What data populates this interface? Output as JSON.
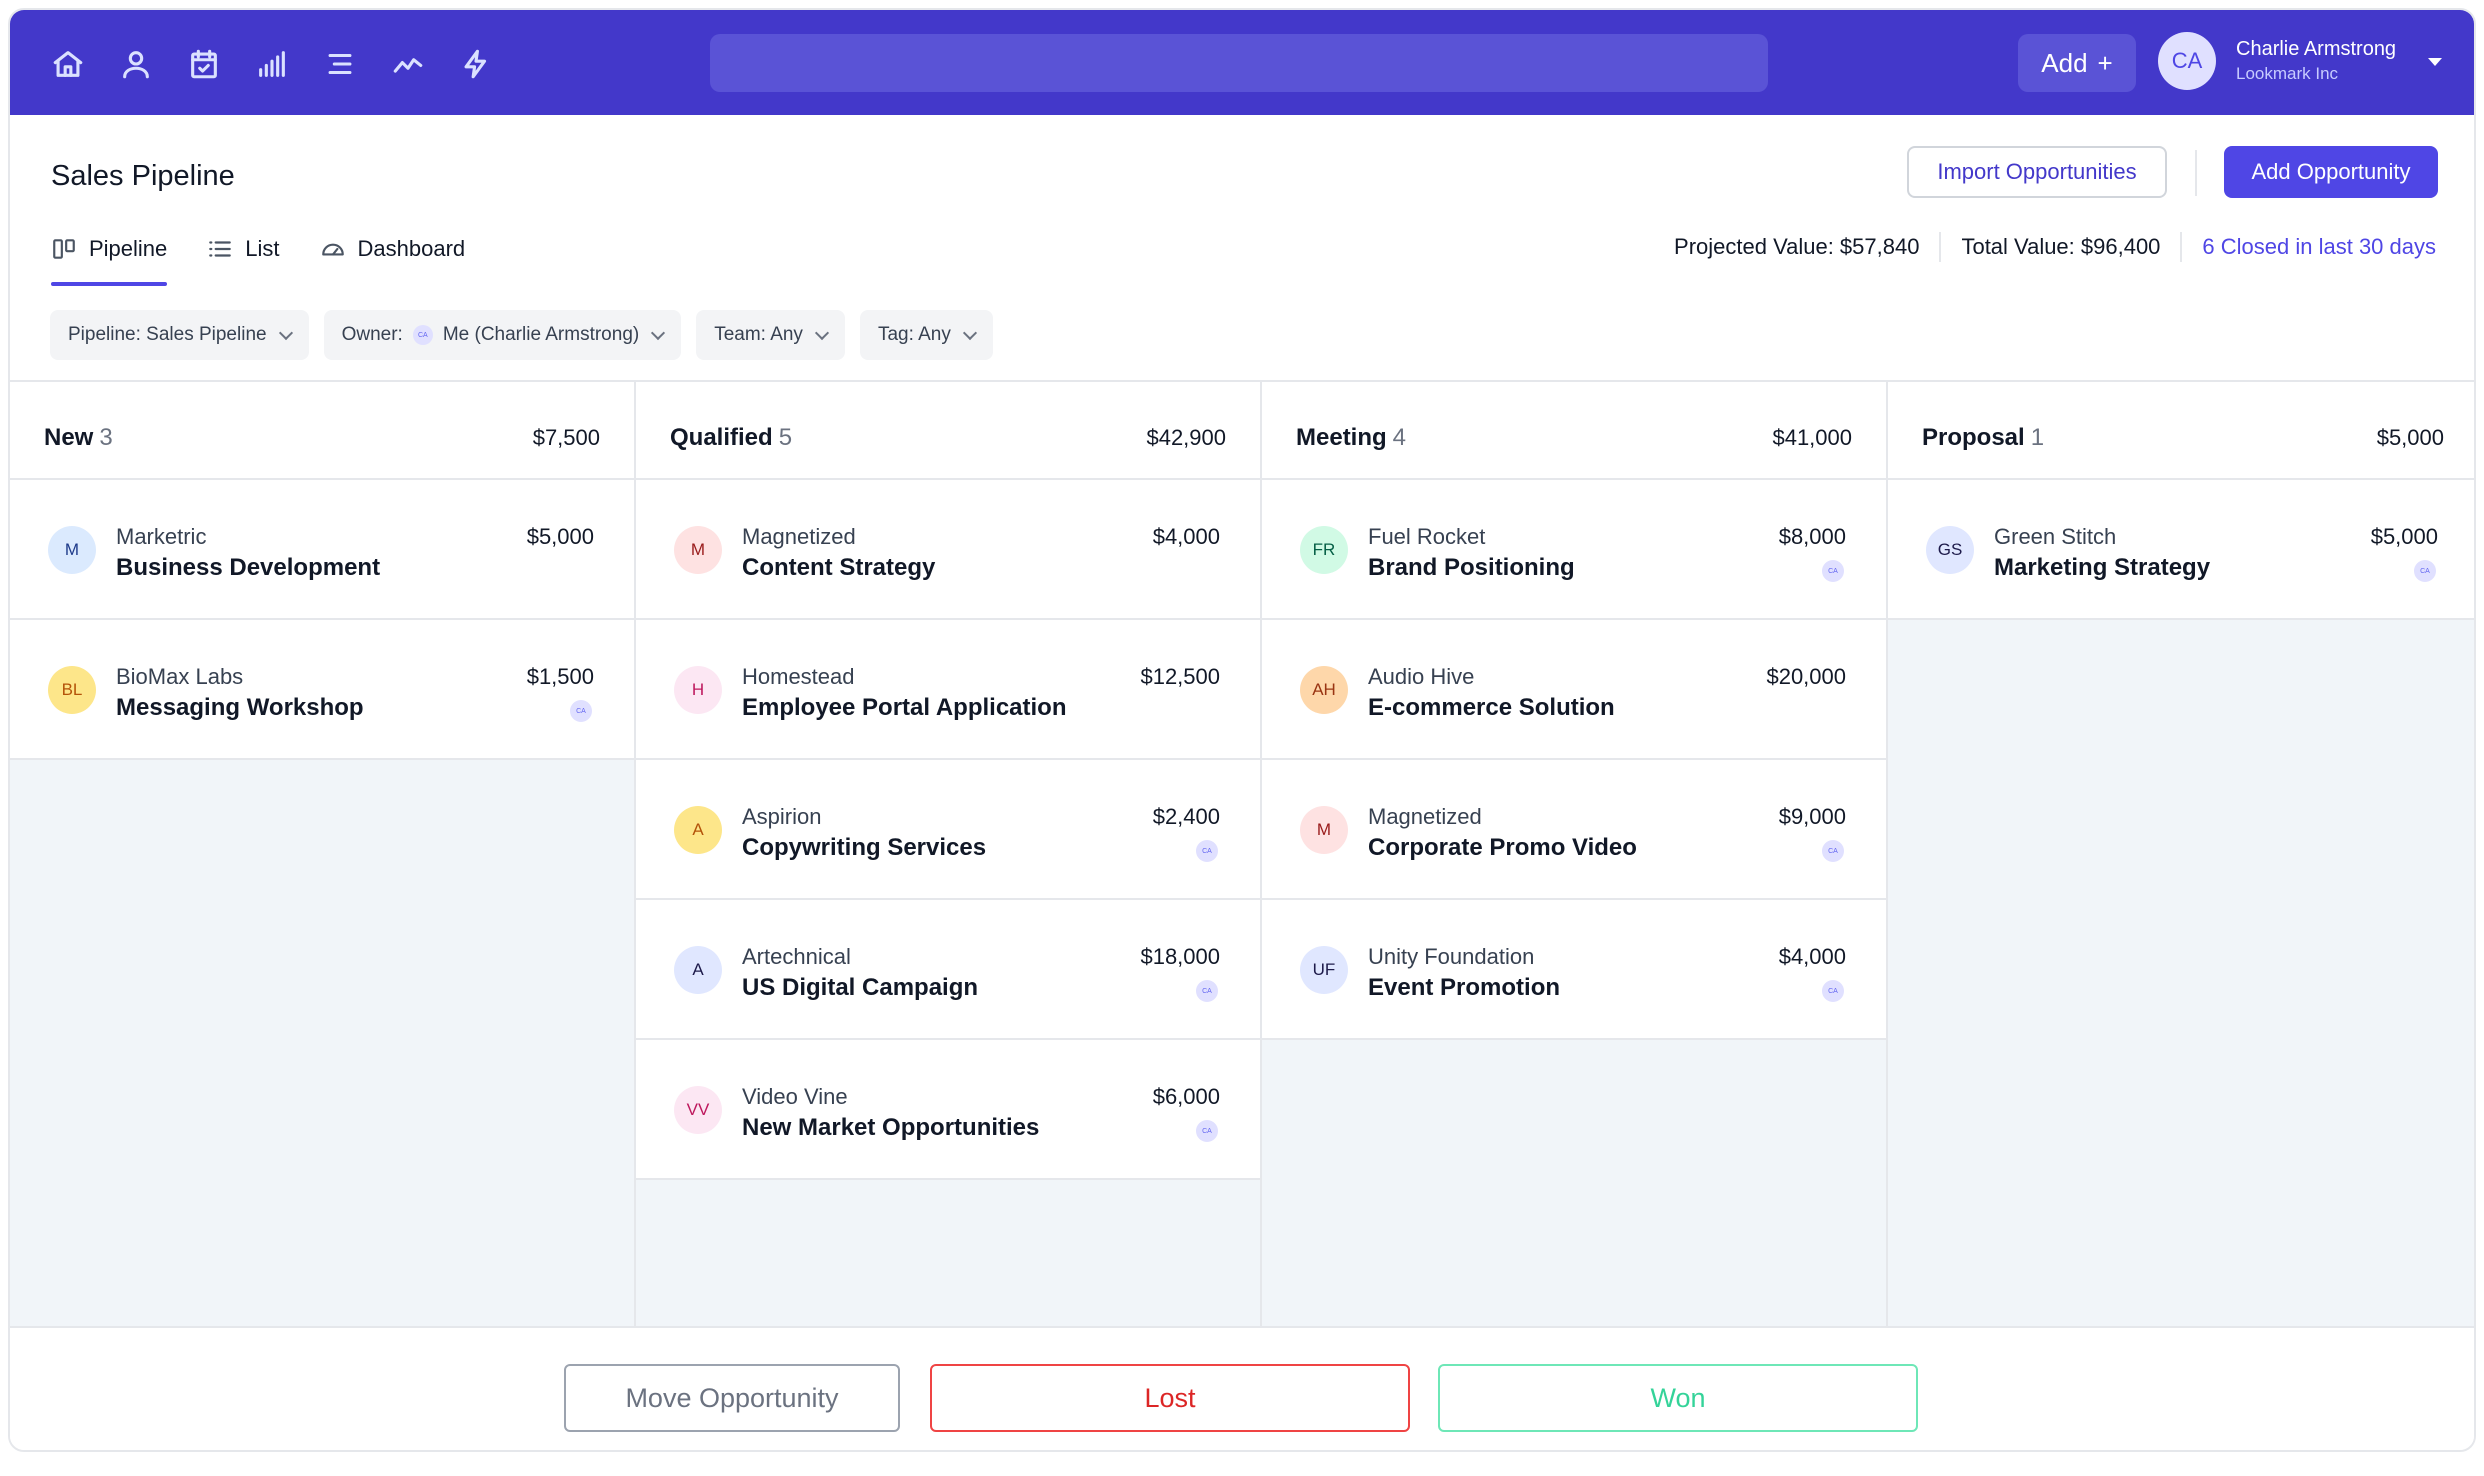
{
  "topbar": {
    "nav_icons": [
      "home-icon",
      "user-icon",
      "calendar-icon",
      "signal-bars-icon",
      "menu-lines-icon",
      "trend-icon",
      "lightning-icon"
    ],
    "search_placeholder": "",
    "add_label": "Add",
    "add_icon": "+",
    "user": {
      "initials": "CA",
      "name": "Charlie Armstrong",
      "org": "Lookmark Inc"
    }
  },
  "header": {
    "title": "Sales Pipeline",
    "import_label": "Import Opportunities",
    "add_opportunity_label": "Add Opportunity"
  },
  "tabs": [
    {
      "label": "Pipeline",
      "icon": "kanban-icon",
      "active": true
    },
    {
      "label": "List",
      "icon": "list-icon",
      "active": false
    },
    {
      "label": "Dashboard",
      "icon": "gauge-icon",
      "active": false
    }
  ],
  "stats": {
    "projected": "Projected Value: $57,840",
    "total": "Total Value: $96,400",
    "closed": "6 Closed in last 30 days"
  },
  "filters": {
    "pipeline": "Pipeline: Sales Pipeline",
    "owner_prefix": "Owner:",
    "owner_initials": "CA",
    "owner_value": "Me (Charlie Armstrong)",
    "team": "Team: Any",
    "tag": "Tag: Any"
  },
  "columns": [
    {
      "name": "New",
      "count": "3",
      "total": "$7,500",
      "cards": [
        {
          "initials": "M",
          "bg": "#dbeafe",
          "fg": "#1e3a8a",
          "company": "Marketric",
          "name": "Business Development",
          "amount": "$5,000",
          "owner": ""
        },
        {
          "initials": "BL",
          "bg": "#fde68a",
          "fg": "#b45309",
          "company": "BioMax Labs",
          "name": "Messaging Workshop",
          "amount": "$1,500",
          "owner": "CA"
        }
      ]
    },
    {
      "name": "Qualified",
      "count": "5",
      "total": "$42,900",
      "cards": [
        {
          "initials": "M",
          "bg": "#fee2e2",
          "fg": "#991b1b",
          "company": "Magnetized",
          "name": "Content Strategy",
          "amount": "$4,000",
          "owner": ""
        },
        {
          "initials": "H",
          "bg": "#fce7f3",
          "fg": "#be185d",
          "company": "Homestead",
          "name": "Employee Portal Application",
          "amount": "$12,500",
          "owner": ""
        },
        {
          "initials": "A",
          "bg": "#fde68a",
          "fg": "#b45309",
          "company": "Aspirion",
          "name": "Copywriting Services",
          "amount": "$2,400",
          "owner": "CA"
        },
        {
          "initials": "A",
          "bg": "#e0e7ff",
          "fg": "#1e1b4b",
          "company": "Artechnical",
          "name": "US Digital Campaign",
          "amount": "$18,000",
          "owner": "CA"
        },
        {
          "initials": "VV",
          "bg": "#fce7f3",
          "fg": "#be185d",
          "company": "Video Vine",
          "name": "New Market Opportunities",
          "amount": "$6,000",
          "owner": "CA"
        }
      ]
    },
    {
      "name": "Meeting",
      "count": "4",
      "total": "$41,000",
      "cards": [
        {
          "initials": "FR",
          "bg": "#d1fae5",
          "fg": "#065f46",
          "company": "Fuel Rocket",
          "name": "Brand Positioning",
          "amount": "$8,000",
          "owner": "CA"
        },
        {
          "initials": "AH",
          "bg": "#fed7aa",
          "fg": "#9a3412",
          "company": "Audio Hive",
          "name": "E-commerce Solution",
          "amount": "$20,000",
          "owner": ""
        },
        {
          "initials": "M",
          "bg": "#fee2e2",
          "fg": "#991b1b",
          "company": "Magnetized",
          "name": "Corporate Promo Video",
          "amount": "$9,000",
          "owner": "CA"
        },
        {
          "initials": "UF",
          "bg": "#e0e7ff",
          "fg": "#1e1b4b",
          "company": "Unity Foundation",
          "name": "Event Promotion",
          "amount": "$4,000",
          "owner": "CA"
        }
      ]
    },
    {
      "name": "Proposal",
      "count": "1",
      "total": "$5,000",
      "cards": [
        {
          "initials": "GS",
          "bg": "#e0e7ff",
          "fg": "#1e1b4b",
          "company": "Green Stitch",
          "name": "Marketing Strategy",
          "amount": "$5,000",
          "owner": "CA"
        }
      ]
    }
  ],
  "footer": {
    "move_label": "Move Opportunity",
    "lost_label": "Lost",
    "won_label": "Won"
  }
}
